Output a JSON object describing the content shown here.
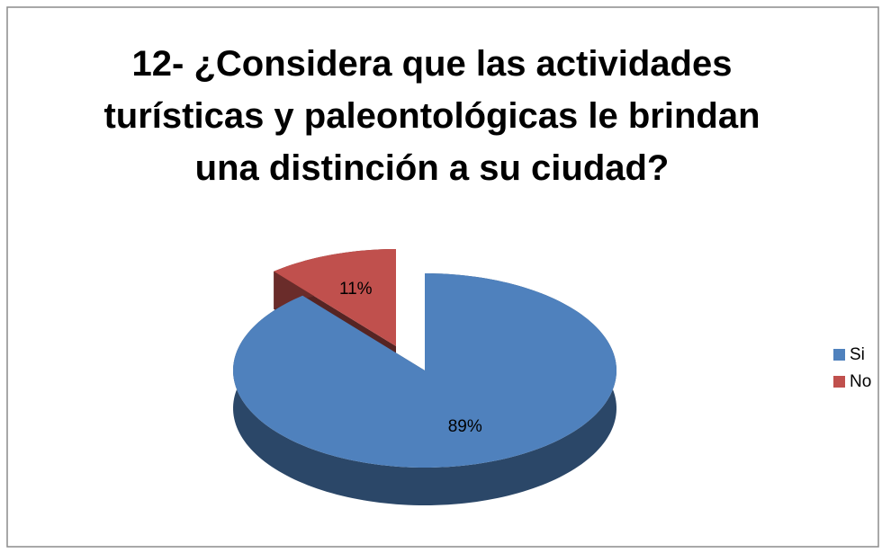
{
  "chart_data": {
    "type": "pie",
    "title": "12- ¿Considera que las actividades turísticas y paleontológicas le brindan una distinción a su ciudad?",
    "categories": [
      "Si",
      "No"
    ],
    "values": [
      89,
      11
    ],
    "value_labels": [
      "89%",
      "11%"
    ],
    "colors": [
      "#4f81bd",
      "#c0504d"
    ],
    "legend": "right"
  }
}
